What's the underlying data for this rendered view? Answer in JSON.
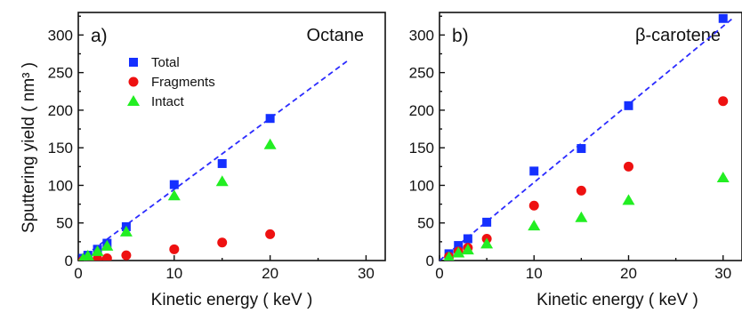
{
  "y_axis_label": "Sputtering yield ( nm³ )",
  "colors": {
    "total": "#1530ff",
    "fragments": "#ee1111",
    "intact": "#22ee22",
    "fit": "#2b2bff"
  },
  "chart_data": [
    {
      "type": "scatter",
      "panel": "a)",
      "title": "Octane",
      "xlabel": "Kinetic energy (  keV )",
      "ylabel": "Sputtering yield ( nm³ )",
      "xlim": [
        0,
        32
      ],
      "ylim": [
        0,
        330
      ],
      "xticks": [
        0,
        10,
        20,
        30
      ],
      "yticks": [
        0,
        50,
        100,
        150,
        200,
        250,
        300
      ],
      "legend_position": "upper-left",
      "series": [
        {
          "name": "Total",
          "marker": "square",
          "x": [
            0.5,
            1,
            2,
            3,
            5,
            10,
            15,
            20
          ],
          "y": [
            3,
            7,
            15,
            23,
            45,
            101,
            129,
            189
          ]
        },
        {
          "name": "Fragments",
          "marker": "circle",
          "x": [
            0.5,
            1,
            2,
            3,
            5,
            10,
            15,
            20
          ],
          "y": [
            0,
            1,
            2,
            3,
            7,
            15,
            24,
            35
          ]
        },
        {
          "name": "Intact",
          "marker": "triangle",
          "x": [
            0.5,
            1,
            2,
            3,
            5,
            10,
            15,
            20
          ],
          "y": [
            2,
            6,
            12,
            19,
            38,
            86,
            105,
            154
          ]
        }
      ],
      "fit_line": {
        "x": [
          0,
          28
        ],
        "y": [
          0,
          265
        ]
      }
    },
    {
      "type": "scatter",
      "panel": "b)",
      "title": "β-carotene",
      "xlabel": "Kinetic energy (  keV )",
      "ylabel": "",
      "xlim": [
        0,
        32
      ],
      "ylim": [
        0,
        330
      ],
      "xticks": [
        0,
        10,
        20,
        30
      ],
      "yticks": [
        0,
        50,
        100,
        150,
        200,
        250,
        300
      ],
      "series": [
        {
          "name": "Total",
          "marker": "square",
          "x": [
            1,
            2,
            3,
            5,
            10,
            15,
            20,
            30
          ],
          "y": [
            9,
            20,
            29,
            51,
            119,
            149,
            206,
            322
          ]
        },
        {
          "name": "Fragments",
          "marker": "circle",
          "x": [
            1,
            2,
            3,
            5,
            10,
            15,
            20,
            30
          ],
          "y": [
            5,
            12,
            17,
            29,
            73,
            93,
            125,
            212
          ]
        },
        {
          "name": "Intact",
          "marker": "triangle",
          "x": [
            1,
            2,
            3,
            5,
            10,
            15,
            20,
            30
          ],
          "y": [
            4,
            10,
            14,
            22,
            46,
            57,
            80,
            110
          ]
        }
      ],
      "fit_line": {
        "x": [
          0,
          31
        ],
        "y": [
          0,
          322
        ]
      }
    }
  ]
}
